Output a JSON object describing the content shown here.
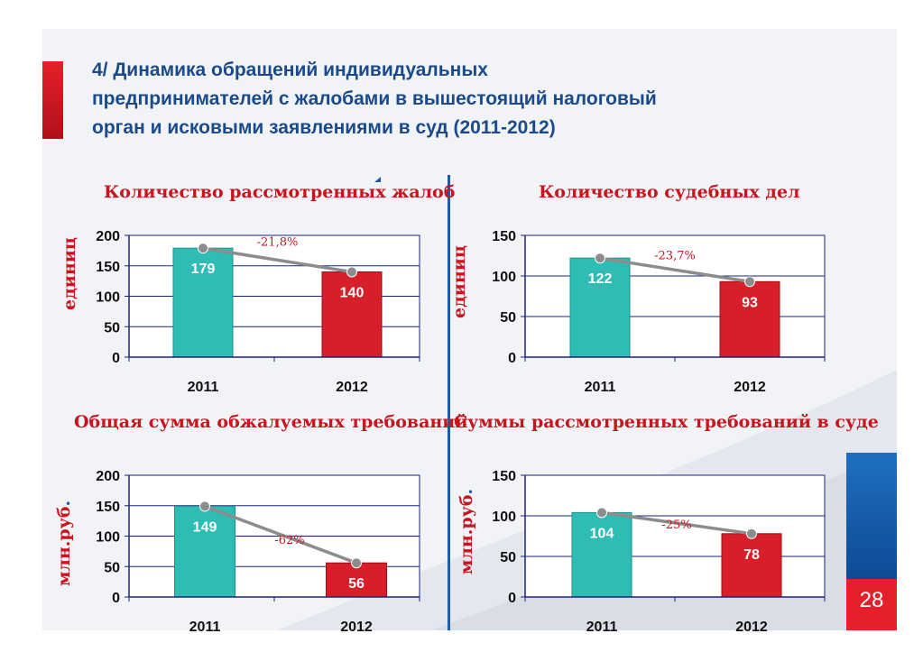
{
  "title": "4/ Динамика обращений индивидуальных предпринимателей с жалобами в вышестоящий налоговый орган и исковыми заявлениями в суд (2011-2012)",
  "title_lines": [
    "4/ Динамика обращений индивидуальных",
    "предпринимателей с жалобами в вышестоящий налоговый",
    "орган и исковыми заявлениями в суд (2011-2012)"
  ],
  "page_number": "28",
  "colors": {
    "bar_2011": "#2fbcb4",
    "bar_2012": "#d81e28",
    "trend_line": "#8c8c8c",
    "axis": "#1a237e",
    "title": "#1a4a8a",
    "label_red": "#c8141e"
  },
  "chart_data": [
    {
      "type": "bar",
      "title": "Количество рассмотренных жалоб",
      "ylabel": "единиц",
      "ylabel_dot": "",
      "categories": [
        "2011",
        "2012"
      ],
      "values": [
        179,
        140
      ],
      "value_labels": [
        "179",
        "140"
      ],
      "change_label": "-21,8%",
      "ylim": [
        0,
        200
      ],
      "yticks": [
        "0",
        "50",
        "100",
        "150",
        "200"
      ],
      "grid": true
    },
    {
      "type": "bar",
      "title": "Количество судебных дел",
      "ylabel": "единиц",
      "ylabel_dot": "",
      "categories": [
        "2011",
        "2012"
      ],
      "values": [
        122,
        93
      ],
      "value_labels": [
        "122",
        "93"
      ],
      "change_label": "-23,7%",
      "ylim": [
        0,
        150
      ],
      "yticks": [
        "0",
        "50",
        "100",
        "150"
      ],
      "grid": true
    },
    {
      "type": "bar",
      "title": "Общая сумма обжалуемых требований",
      "ylabel": "млн.руб",
      "ylabel_dot": ".",
      "categories": [
        "2011",
        "2012"
      ],
      "values": [
        149,
        56
      ],
      "value_labels": [
        "149",
        "56"
      ],
      "change_label": "-62%",
      "ylim": [
        0,
        200
      ],
      "yticks": [
        "0",
        "50",
        "100",
        "150",
        "200"
      ],
      "grid": true
    },
    {
      "type": "bar",
      "title": "Суммы рассмотренных требований в суде",
      "ylabel": "млн.руб",
      "ylabel_dot": ".",
      "categories": [
        "2011",
        "2012"
      ],
      "values": [
        104,
        78
      ],
      "value_labels": [
        "104",
        "78"
      ],
      "change_label": "-25%",
      "ylim": [
        0,
        150
      ],
      "yticks": [
        "0",
        "50",
        "100",
        "150"
      ],
      "grid": true
    }
  ]
}
